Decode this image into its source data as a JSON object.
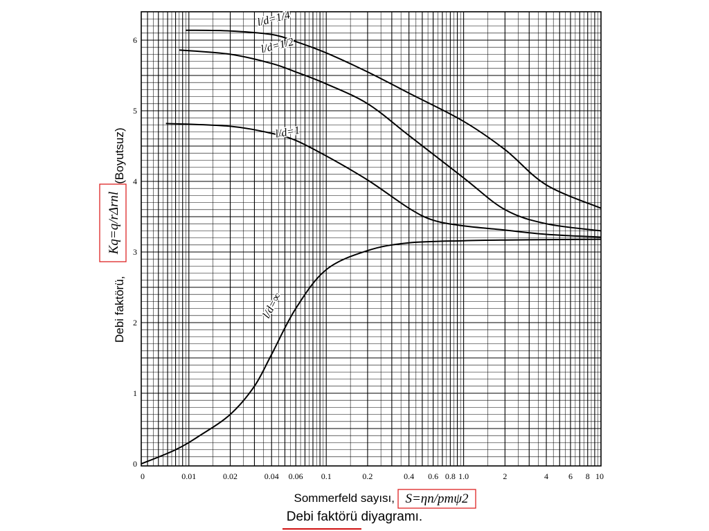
{
  "chart_data": {
    "type": "line",
    "title": "",
    "xscale": "log",
    "xlim": [
      0.0045,
      10
    ],
    "ylim": [
      0,
      6.3
    ],
    "xlabel": "Sommerfeld sayısı,",
    "xlabel_formula": "S=ηn/pmψ2",
    "ylabel": "Debi faktörü,",
    "ylabel_formula": "Kq=q/rΔrnl",
    "ylabel_unit": "(Boyutsuz)",
    "x_ticks": [
      {
        "value": 0.0045,
        "label": "0"
      },
      {
        "value": 0.01,
        "label": "0.01"
      },
      {
        "value": 0.02,
        "label": "0.02"
      },
      {
        "value": 0.04,
        "label": "0.04"
      },
      {
        "value": 0.06,
        "label": "0.06"
      },
      {
        "value": 0.1,
        "label": "0.1"
      },
      {
        "value": 0.2,
        "label": "0.2"
      },
      {
        "value": 0.4,
        "label": "0.4"
      },
      {
        "value": 0.6,
        "label": "0.6"
      },
      {
        "value": 0.8,
        "label": "0.8"
      },
      {
        "value": 1.0,
        "label": "1.0"
      },
      {
        "value": 2,
        "label": "2"
      },
      {
        "value": 4,
        "label": "4"
      },
      {
        "value": 6,
        "label": "6"
      },
      {
        "value": 8,
        "label": "8"
      },
      {
        "value": 10,
        "label": "10"
      }
    ],
    "y_ticks": [
      {
        "value": 0,
        "label": "0"
      },
      {
        "value": 1,
        "label": "1"
      },
      {
        "value": 2,
        "label": "2"
      },
      {
        "value": 3,
        "label": "3"
      },
      {
        "value": 4,
        "label": "4"
      },
      {
        "value": 5,
        "label": "5"
      },
      {
        "value": 6,
        "label": "6"
      }
    ],
    "series": [
      {
        "name": "l/d=1/4",
        "points": [
          [
            0.0095,
            6.14
          ],
          [
            0.02,
            6.13
          ],
          [
            0.04,
            6.08
          ],
          [
            0.06,
            5.98
          ],
          [
            0.1,
            5.82
          ],
          [
            0.2,
            5.55
          ],
          [
            0.4,
            5.25
          ],
          [
            1.0,
            4.85
          ],
          [
            2,
            4.45
          ],
          [
            4,
            3.95
          ],
          [
            10,
            3.62
          ]
        ]
      },
      {
        "name": "l/d=1/2",
        "points": [
          [
            0.0085,
            5.86
          ],
          [
            0.02,
            5.8
          ],
          [
            0.04,
            5.67
          ],
          [
            0.06,
            5.55
          ],
          [
            0.1,
            5.38
          ],
          [
            0.2,
            5.1
          ],
          [
            0.4,
            4.65
          ],
          [
            1.0,
            4.05
          ],
          [
            2,
            3.6
          ],
          [
            4,
            3.4
          ],
          [
            10,
            3.3
          ]
        ]
      },
      {
        "name": "l/d=1",
        "points": [
          [
            0.0068,
            4.82
          ],
          [
            0.02,
            4.78
          ],
          [
            0.04,
            4.68
          ],
          [
            0.06,
            4.58
          ],
          [
            0.1,
            4.36
          ],
          [
            0.2,
            4.02
          ],
          [
            0.4,
            3.62
          ],
          [
            0.6,
            3.45
          ],
          [
            1.0,
            3.37
          ],
          [
            2,
            3.31
          ],
          [
            4,
            3.25
          ],
          [
            10,
            3.21
          ]
        ]
      },
      {
        "name": "l/d=∞",
        "points": [
          [
            0.0045,
            0.0
          ],
          [
            0.008,
            0.2
          ],
          [
            0.012,
            0.4
          ],
          [
            0.02,
            0.7
          ],
          [
            0.03,
            1.1
          ],
          [
            0.04,
            1.55
          ],
          [
            0.06,
            2.2
          ],
          [
            0.1,
            2.75
          ],
          [
            0.2,
            3.02
          ],
          [
            0.4,
            3.13
          ],
          [
            1.0,
            3.16
          ],
          [
            2,
            3.17
          ],
          [
            10,
            3.18
          ]
        ]
      }
    ]
  },
  "caption": {
    "highlighted": "Debi faktörü",
    "rest": " diyagramı."
  }
}
